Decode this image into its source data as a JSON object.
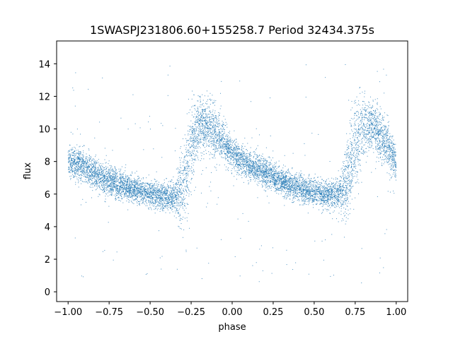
{
  "chart_data": {
    "type": "scatter",
    "title": "1SWASPJ231806.60+155258.7 Period 32434.375s",
    "xlabel": "phase",
    "ylabel": "flux",
    "xlim": [
      -1.07,
      1.07
    ],
    "ylim": [
      -0.6,
      15.4
    ],
    "x_ticks": [
      -1.0,
      -0.75,
      -0.5,
      -0.25,
      0.0,
      0.25,
      0.5,
      0.75,
      1.0
    ],
    "x_tick_labels": [
      "−1.00",
      "−0.75",
      "−0.50",
      "−0.25",
      "0.00",
      "0.25",
      "0.50",
      "0.75",
      "1.00"
    ],
    "y_ticks": [
      0,
      2,
      4,
      6,
      8,
      10,
      12,
      14
    ],
    "y_tick_labels": [
      "0",
      "2",
      "4",
      "6",
      "8",
      "10",
      "12",
      "14"
    ],
    "grid": false,
    "marker_color": "#1f77b4",
    "series": [
      {
        "envelope": {
          "phase": [
            -1.0,
            -0.9,
            -0.8,
            -0.7,
            -0.6,
            -0.5,
            -0.4,
            -0.35,
            -0.3,
            -0.25,
            -0.2,
            -0.15,
            -0.1,
            -0.05,
            0.0,
            0.1,
            0.2,
            0.3,
            0.4,
            0.5,
            0.6,
            0.65,
            0.7,
            0.75,
            0.8,
            0.85,
            0.9,
            0.95,
            1.0
          ],
          "flux_mean": [
            8.0,
            7.6,
            7.0,
            6.6,
            6.3,
            6.0,
            5.8,
            5.8,
            6.5,
            9.0,
            10.3,
            10.2,
            9.7,
            9.2,
            8.5,
            7.8,
            7.3,
            6.8,
            6.4,
            6.1,
            5.9,
            5.9,
            6.6,
            9.0,
            10.1,
            10.2,
            9.6,
            9.0,
            8.0
          ],
          "flux_spread": [
            0.5,
            0.5,
            0.45,
            0.45,
            0.4,
            0.4,
            0.4,
            0.5,
            1.2,
            1.4,
            0.9,
            0.8,
            0.8,
            0.6,
            0.5,
            0.45,
            0.45,
            0.4,
            0.4,
            0.4,
            0.4,
            0.5,
            1.2,
            1.4,
            0.9,
            0.8,
            0.8,
            0.7,
            0.5
          ]
        },
        "approx_point_count": 9000
      }
    ]
  }
}
